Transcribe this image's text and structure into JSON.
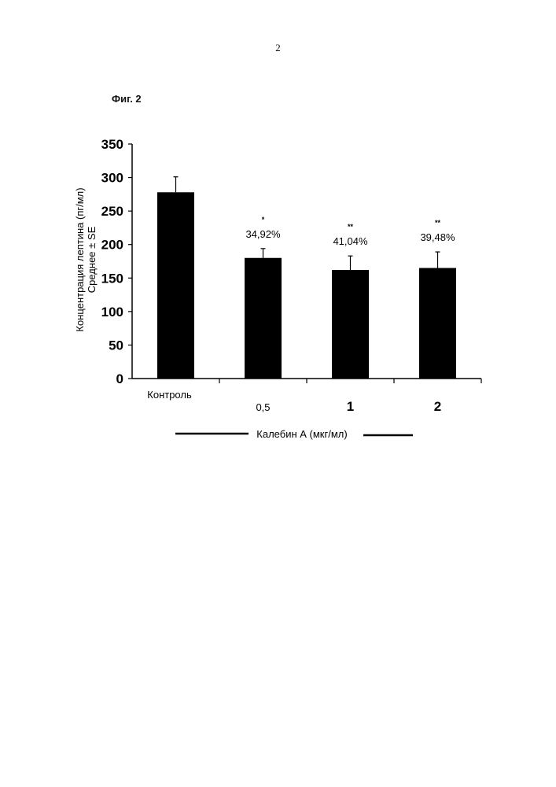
{
  "page": {
    "number": "2",
    "figure_label": "Фиг. 2"
  },
  "chart_data": {
    "type": "bar",
    "categories": [
      "Контроль",
      "0,5",
      "1",
      "2"
    ],
    "values": [
      278,
      180,
      162,
      165
    ],
    "error_bars": [
      23,
      14,
      21,
      24
    ],
    "annotations": [
      {
        "significance": "",
        "percent": ""
      },
      {
        "significance": "*",
        "percent": "34,92%"
      },
      {
        "significance": "**",
        "percent": "41,04%"
      },
      {
        "significance": "**",
        "percent": "39,48%"
      }
    ],
    "ylabel": [
      "Концентрация лептина (пг/мл)",
      "Среднее ± SE"
    ],
    "xlabel": "Калебин А (мкг/мл)",
    "ylim": [
      0,
      350
    ],
    "yticks": [
      0,
      50,
      100,
      150,
      200,
      250,
      300,
      350
    ],
    "bar_color": "#000000",
    "grid": false
  }
}
